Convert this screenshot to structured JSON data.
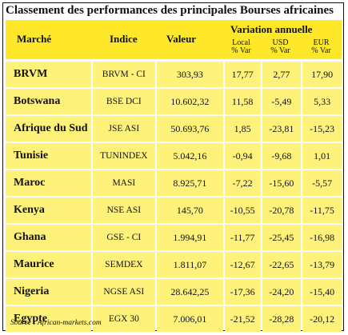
{
  "title": "Classement des performances des principales Bourses africaines",
  "header": {
    "marche": "Marché",
    "indice": "Indice",
    "valeur": "Valeur",
    "variation": "Variation annuelle",
    "local": "Local",
    "usd": "USD",
    "eur": "EUR",
    "pct_var": "% Var"
  },
  "rows": [
    {
      "marche": "BRVM",
      "indice": "BRVM - CI",
      "valeur": "303,93",
      "local": "17,77",
      "usd": "2,77",
      "eur": "17,90"
    },
    {
      "marche": "Botswana",
      "indice": "BSE DCI",
      "valeur": "10.602,32",
      "local": "11,58",
      "usd": "-5,49",
      "eur": "5,33"
    },
    {
      "marche": "Afrique du Sud",
      "indice": "JSE ASI",
      "valeur": "50.693,76",
      "local": "1,85",
      "usd": "-23,81",
      "eur": "-15,23"
    },
    {
      "marche": "Tunisie",
      "indice": "TUNINDEX",
      "valeur": "5.042,16",
      "local": "-0,94",
      "usd": "-9,68",
      "eur": "1,01"
    },
    {
      "marche": "Maroc",
      "indice": "MASI",
      "valeur": "8.925,71",
      "local": "-7,22",
      "usd": "-15,60",
      "eur": "-5,57"
    },
    {
      "marche": "Kenya",
      "indice": "NSE ASI",
      "valeur": "145,70",
      "local": "-10,55",
      "usd": "-20,78",
      "eur": "-11,75"
    },
    {
      "marche": "Ghana",
      "indice": "GSE - CI",
      "valeur": "1.994,91",
      "local": "-11,77",
      "usd": "-25,45",
      "eur": "-16,98"
    },
    {
      "marche": "Maurice",
      "indice": "SEMDEX",
      "valeur": "1.811,07",
      "local": "-12,67",
      "usd": "-22,65",
      "eur": "-13,79"
    },
    {
      "marche": "Nigeria",
      "indice": "NGSE ASI",
      "valeur": "28.642,25",
      "local": "-17,36",
      "usd": "-24,20",
      "eur": "-15,40"
    },
    {
      "marche": "Egypte",
      "indice": "EGX 30",
      "valeur": "7.006,01",
      "local": "-21,52",
      "usd": "-28,28",
      "eur": "-20,12"
    }
  ],
  "source": "Source : African-markets.com"
}
